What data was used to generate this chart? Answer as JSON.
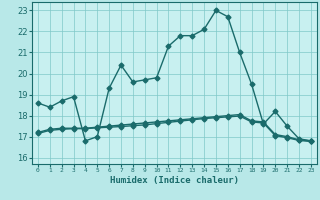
{
  "xlabel": "Humidex (Indice chaleur)",
  "ylabel": "",
  "bg_color": "#b8e8e8",
  "plot_bg_color": "#c8f0f0",
  "line_color": "#1a6b6b",
  "grid_color": "#80c8c8",
  "xlim": [
    -0.5,
    23.5
  ],
  "ylim": [
    15.7,
    23.4
  ],
  "yticks": [
    16,
    17,
    18,
    19,
    20,
    21,
    22,
    23
  ],
  "xtick_labels": [
    "0",
    "1",
    "2",
    "3",
    "4",
    "5",
    "6",
    "7",
    "8",
    "9",
    "10",
    "11",
    "12",
    "13",
    "14",
    "15",
    "16",
    "17",
    "18",
    "19",
    "20",
    "21",
    "22",
    "23"
  ],
  "line1_x": [
    0,
    1,
    2,
    3,
    4,
    5,
    6,
    7,
    8,
    9,
    10,
    11,
    12,
    13,
    14,
    15,
    16,
    17,
    18,
    19,
    20,
    21,
    22,
    23
  ],
  "line1_y": [
    18.6,
    18.4,
    18.7,
    18.9,
    16.8,
    17.0,
    19.3,
    20.4,
    19.6,
    19.7,
    19.8,
    21.3,
    21.8,
    21.8,
    22.1,
    23.0,
    22.7,
    21.0,
    19.5,
    17.6,
    18.2,
    17.5,
    16.9,
    16.8
  ],
  "line2_x": [
    0,
    1,
    2,
    3,
    4,
    5,
    6,
    7,
    8,
    9,
    10,
    11,
    12,
    13,
    14,
    15,
    16,
    17,
    18,
    19,
    20,
    21,
    22,
    23
  ],
  "line2_y": [
    17.2,
    17.35,
    17.4,
    17.4,
    17.4,
    17.45,
    17.5,
    17.55,
    17.6,
    17.65,
    17.7,
    17.75,
    17.8,
    17.85,
    17.9,
    17.95,
    18.0,
    18.05,
    17.75,
    17.7,
    17.1,
    17.0,
    16.85,
    16.8
  ],
  "line3_x": [
    0,
    1,
    2,
    3,
    4,
    5,
    6,
    7,
    8,
    9,
    10,
    11,
    12,
    13,
    14,
    15,
    16,
    17,
    18,
    19,
    20,
    21,
    22,
    23
  ],
  "line3_y": [
    17.15,
    17.3,
    17.35,
    17.38,
    17.38,
    17.42,
    17.45,
    17.48,
    17.52,
    17.56,
    17.62,
    17.68,
    17.74,
    17.8,
    17.86,
    17.9,
    17.94,
    17.98,
    17.7,
    17.65,
    17.05,
    16.95,
    16.82,
    16.77
  ],
  "marker": "D",
  "markersize": 2.5,
  "linewidth": 1.0
}
